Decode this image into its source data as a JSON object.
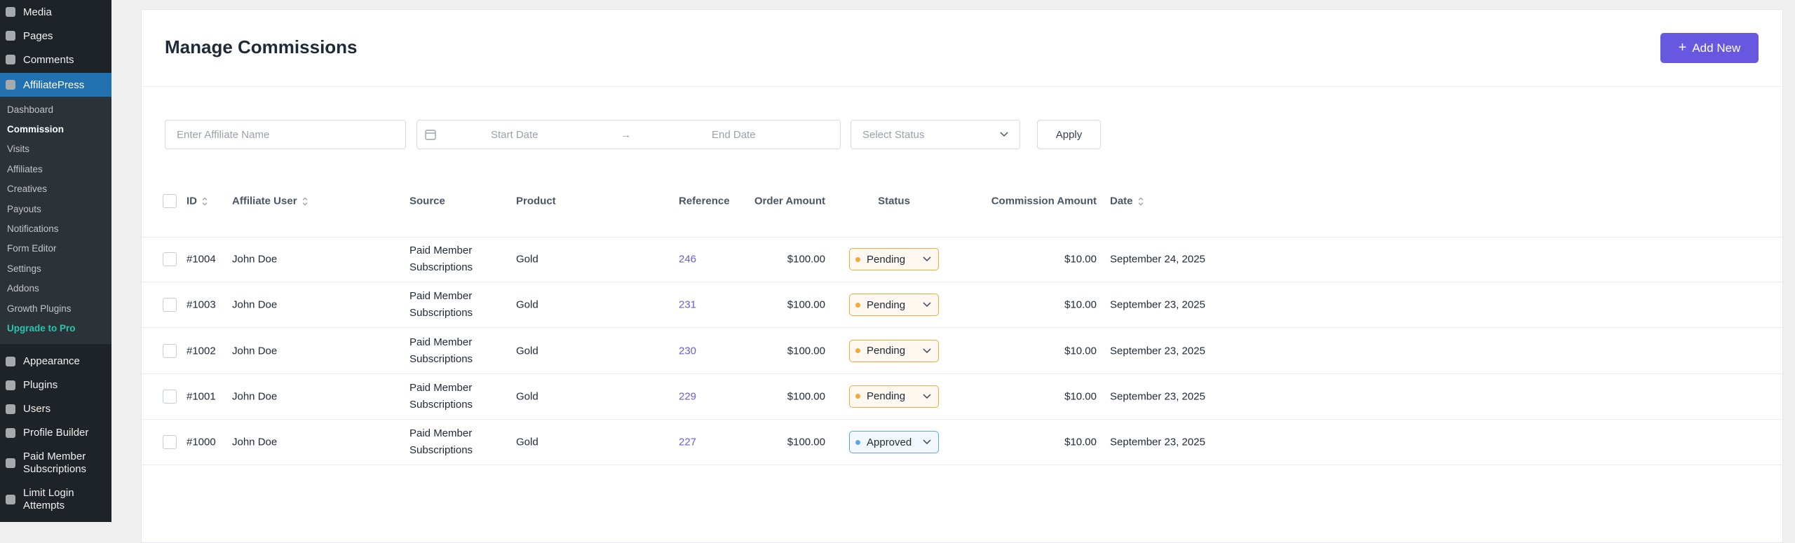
{
  "sidebar": {
    "top": [
      "Media",
      "Pages",
      "Comments"
    ],
    "plugin": "AffiliatePress",
    "submenu": [
      "Dashboard",
      "Commission",
      "Visits",
      "Affiliates",
      "Creatives",
      "Payouts",
      "Notifications",
      "Form Editor",
      "Settings",
      "Addons",
      "Growth Plugins"
    ],
    "upgrade": "Upgrade to Pro",
    "bottom": [
      "Appearance",
      "Plugins",
      "Users",
      "Profile Builder",
      "Paid Member Subscriptions",
      "Limit Login Attempts"
    ]
  },
  "header": {
    "title": "Manage Commissions",
    "add_button": "Add New"
  },
  "filters": {
    "affiliate_placeholder": "Enter Affiliate Name",
    "start_date": "Start Date",
    "end_date": "End Date",
    "status_placeholder": "Select Status",
    "apply": "Apply"
  },
  "table": {
    "columns": [
      "ID",
      "Affiliate User",
      "Source",
      "Product",
      "Reference",
      "Order Amount",
      "Status",
      "Commission Amount",
      "Date"
    ],
    "rows": [
      [
        "#1004",
        "John Doe",
        "Paid Member Subscriptions",
        "Gold",
        "246",
        "$100.00",
        "Pending",
        "$10.00",
        "September 24, 2025"
      ],
      [
        "#1003",
        "John Doe",
        "Paid Member Subscriptions",
        "Gold",
        "231",
        "$100.00",
        "Pending",
        "$10.00",
        "September 23, 2025"
      ],
      [
        "#1002",
        "John Doe",
        "Paid Member Subscriptions",
        "Gold",
        "230",
        "$100.00",
        "Pending",
        "$10.00",
        "September 23, 2025"
      ],
      [
        "#1001",
        "John Doe",
        "Paid Member Subscriptions",
        "Gold",
        "229",
        "$100.00",
        "Pending",
        "$10.00",
        "September 23, 2025"
      ],
      [
        "#1000",
        "John Doe",
        "Paid Member Subscriptions",
        "Gold",
        "227",
        "$100.00",
        "Approved",
        "$10.00",
        "September 23, 2025"
      ]
    ],
    "status_colors": [
      "#f0a93b",
      "#f0a93b",
      "#f0a93b",
      "#f0a93b",
      "#5aa9e6"
    ]
  }
}
